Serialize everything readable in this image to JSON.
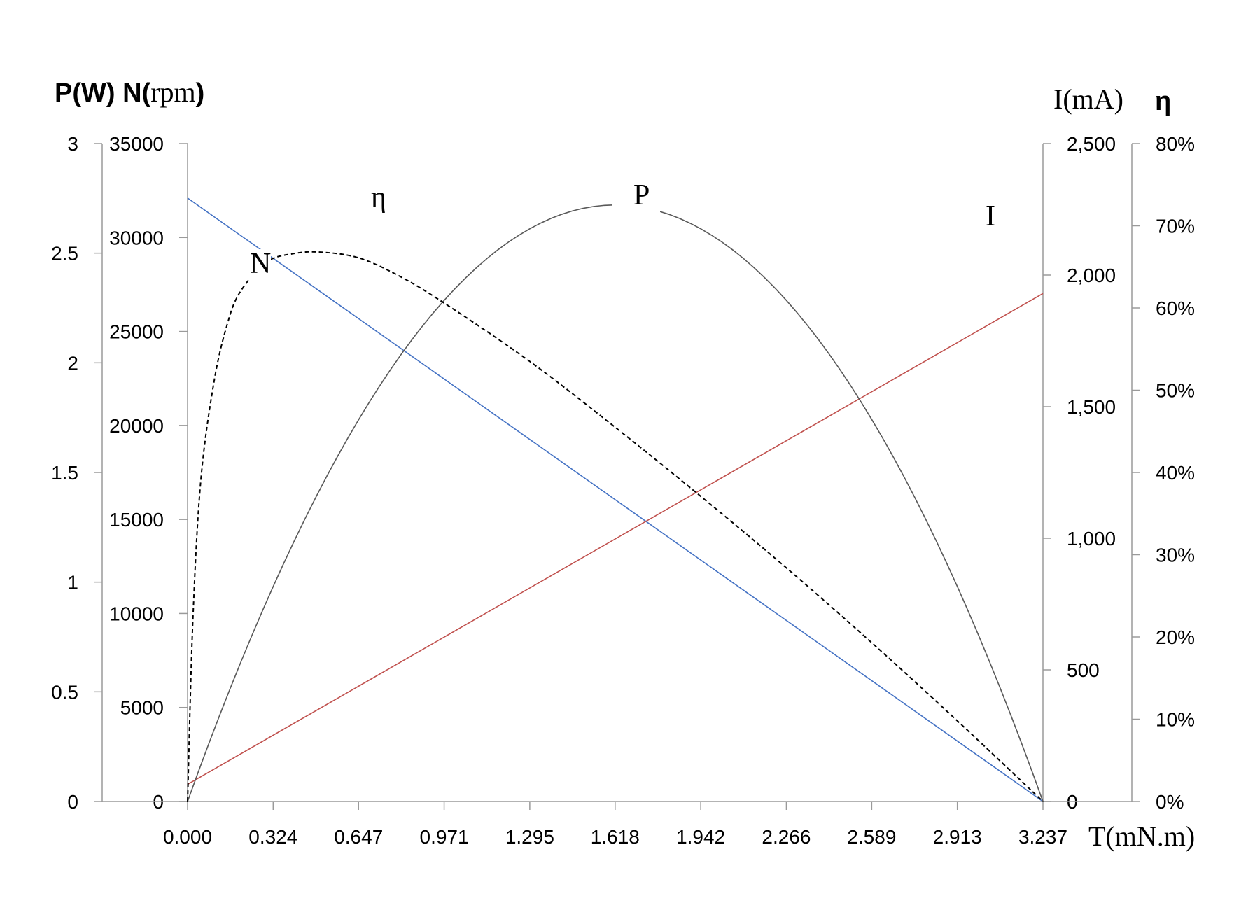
{
  "chart_data": {
    "type": "line",
    "x": {
      "label": "T(mN.m)",
      "ticks": [
        "0.000",
        "0.324",
        "0.647",
        "0.971",
        "1.295",
        "1.618",
        "1.942",
        "2.266",
        "2.589",
        "2.913",
        "3.237"
      ],
      "range": [
        0,
        3.237
      ]
    },
    "axes": {
      "power": {
        "title_part1": "P(W) N(",
        "title_part2": "rpm",
        "title_part3": ")",
        "ticks": [
          "0",
          "0.5",
          "1",
          "1.5",
          "2",
          "2.5",
          "3"
        ],
        "range": [
          0,
          3
        ]
      },
      "speed": {
        "ticks": [
          "0",
          "5000",
          "10000",
          "15000",
          "20000",
          "25000",
          "30000",
          "35000"
        ],
        "range": [
          0,
          35000
        ]
      },
      "current": {
        "title": "I(mA)",
        "ticks": [
          "0",
          "500",
          "1,000",
          "1,500",
          "2,000",
          "2,500"
        ],
        "range": [
          0,
          2500
        ]
      },
      "efficiency": {
        "title": "η",
        "ticks": [
          "0%",
          "10%",
          "20%",
          "30%",
          "40%",
          "50%",
          "60%",
          "70%",
          "80%"
        ],
        "range": [
          0,
          80
        ]
      }
    },
    "grid": false,
    "series": [
      {
        "name": "N",
        "axis": "speed",
        "color": "#4472c4",
        "style": "solid",
        "points": [
          [
            0,
            32100
          ],
          [
            3.237,
            0
          ]
        ]
      },
      {
        "name": "I",
        "axis": "current",
        "color": "#c0504d",
        "style": "solid",
        "points": [
          [
            0,
            65
          ],
          [
            3.237,
            1930
          ]
        ]
      },
      {
        "name": "P",
        "axis": "power",
        "color": "#595959",
        "style": "solid",
        "points": [
          [
            0,
            0
          ],
          [
            0.324,
            0.98
          ],
          [
            0.647,
            1.74
          ],
          [
            0.971,
            2.29
          ],
          [
            1.295,
            2.61
          ],
          [
            1.618,
            2.72
          ],
          [
            1.942,
            2.61
          ],
          [
            2.266,
            2.29
          ],
          [
            2.589,
            1.74
          ],
          [
            2.913,
            0.98
          ],
          [
            3.237,
            0
          ]
        ]
      },
      {
        "name": "η",
        "axis": "efficiency",
        "color": "#000000",
        "style": "dashed",
        "points": [
          [
            0,
            0
          ],
          [
            0.02,
            22
          ],
          [
            0.05,
            39
          ],
          [
            0.1,
            51
          ],
          [
            0.15,
            58
          ],
          [
            0.2,
            62
          ],
          [
            0.3,
            65.6
          ],
          [
            0.4,
            66.6
          ],
          [
            0.5,
            66.8
          ],
          [
            0.647,
            66.1
          ],
          [
            0.8,
            63.9
          ],
          [
            0.971,
            60.6
          ],
          [
            1.295,
            53.5
          ],
          [
            1.618,
            45.5
          ],
          [
            1.942,
            37.1
          ],
          [
            2.266,
            28.4
          ],
          [
            2.589,
            19.3
          ],
          [
            2.913,
            9.8
          ],
          [
            3.237,
            0
          ]
        ]
      }
    ]
  }
}
